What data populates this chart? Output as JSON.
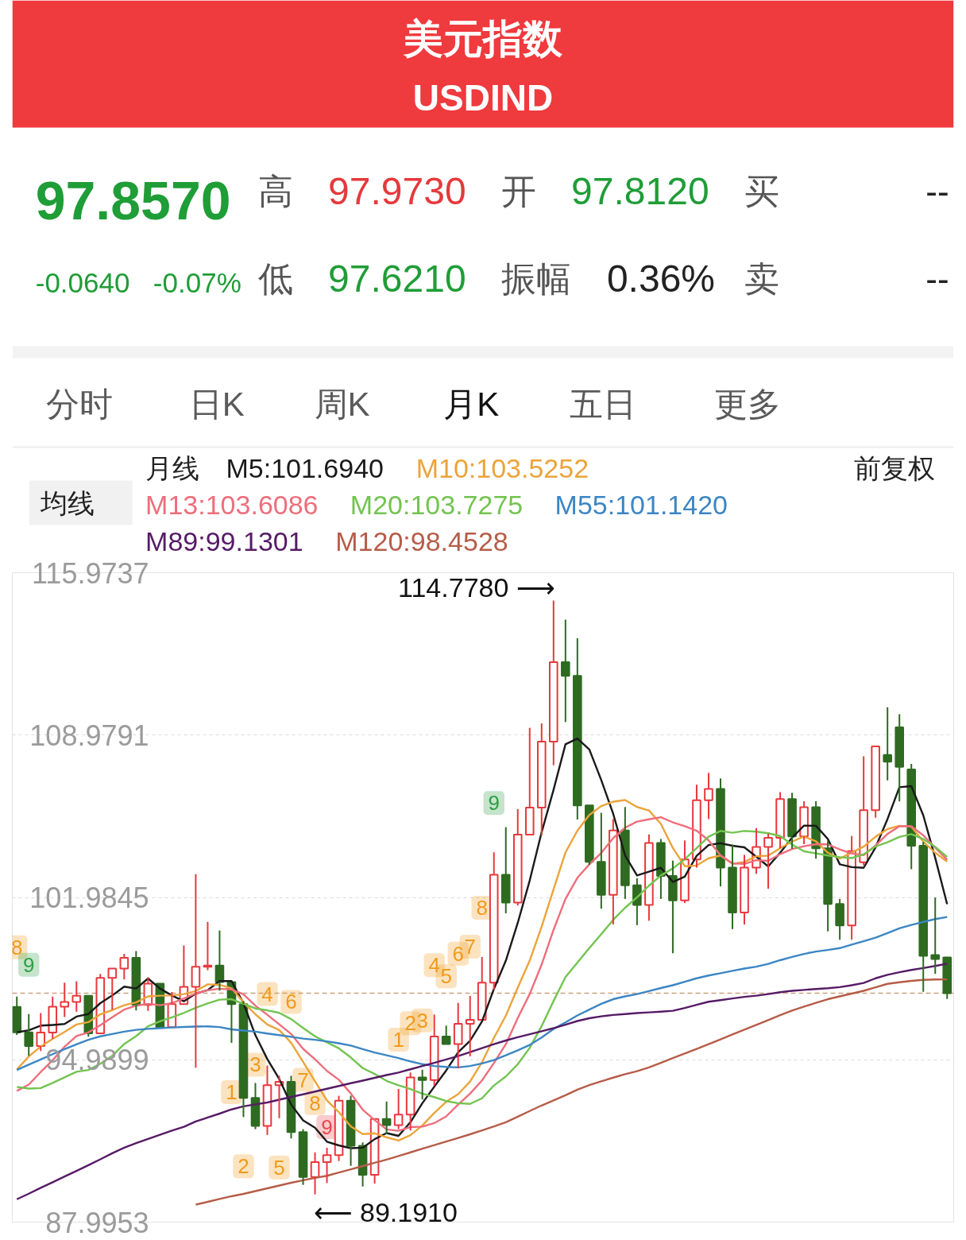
{
  "chart_data": {
    "type": "candlestick",
    "title": "美元指数",
    "subtitle": "USDIND",
    "annotations": [
      "97.8570",
      "高",
      "97.9730",
      "开",
      "97.8120",
      "买",
      "--",
      "-0.0640",
      "-0.07%",
      "低",
      "97.6210",
      "振幅",
      "0.36%",
      "卖",
      "--",
      "分时",
      "日K",
      "周K",
      "月K",
      "五日",
      "更多",
      "均线",
      "前复权",
      "114.7780 ⟶",
      "⟵ 89.1910",
      "8",
      "9",
      "1",
      "2",
      "3",
      "4",
      "5",
      "6",
      "7",
      "8",
      "9",
      "1",
      "2",
      "3",
      "4",
      "5",
      "6",
      "7",
      "8",
      "9"
    ],
    "categories": [
      null,
      null,
      null,
      null,
      null,
      null,
      null,
      null,
      null,
      null,
      null,
      null,
      null,
      null,
      null,
      null,
      null,
      null,
      null,
      null,
      null,
      null,
      null,
      null,
      null,
      null,
      null,
      null,
      null,
      null,
      null,
      null,
      null,
      null,
      null,
      null,
      null,
      null,
      null,
      null,
      null,
      null,
      null,
      null,
      null,
      null,
      null,
      null,
      null,
      null,
      null,
      null,
      null,
      null,
      null,
      null,
      null,
      null,
      null,
      null,
      null,
      null,
      null,
      null,
      null,
      null,
      null,
      null,
      null,
      null,
      null,
      null,
      null,
      null,
      null,
      null,
      null,
      null,
      null
    ],
    "ohlc": [
      [
        97.27,
        97.71,
        96.06,
        96.17
      ],
      [
        96.17,
        96.96,
        95.16,
        95.58
      ],
      [
        95.58,
        97.0,
        95.37,
        96.16
      ],
      [
        96.16,
        97.71,
        95.9,
        97.28
      ],
      [
        97.28,
        98.31,
        96.83,
        97.48
      ],
      [
        97.48,
        98.37,
        97.06,
        97.75
      ],
      [
        97.75,
        97.8,
        95.98,
        96.13
      ],
      [
        96.13,
        98.69,
        96.07,
        98.52
      ],
      [
        98.52,
        99.0,
        97.15,
        98.92
      ],
      [
        98.92,
        99.55,
        98.45,
        99.38
      ],
      [
        99.38,
        99.67,
        97.11,
        97.35
      ],
      [
        97.35,
        98.54,
        97.1,
        98.27
      ],
      [
        98.27,
        98.37,
        96.36,
        96.39
      ],
      [
        96.39,
        97.91,
        96.36,
        97.39
      ],
      [
        97.39,
        99.91,
        97.34,
        98.13
      ],
      [
        98.13,
        102.99,
        94.65,
        99.0
      ],
      [
        99.0,
        100.93,
        98.85,
        99.05
      ],
      [
        99.05,
        100.56,
        97.97,
        98.34
      ],
      [
        98.34,
        98.36,
        95.72,
        97.39
      ],
      [
        97.39,
        97.52,
        92.52,
        93.35
      ],
      [
        93.35,
        93.99,
        92.0,
        92.14
      ],
      [
        92.14,
        94.74,
        91.75,
        93.89
      ],
      [
        93.89,
        94.3,
        92.47,
        94.04
      ],
      [
        94.04,
        94.3,
        91.6,
        91.87
      ],
      [
        91.87,
        92.0,
        89.6,
        89.94
      ],
      [
        89.94,
        91.0,
        89.191,
        90.58
      ],
      [
        90.58,
        91.2,
        89.68,
        90.88
      ],
      [
        90.88,
        93.44,
        90.63,
        93.23
      ],
      [
        93.23,
        93.44,
        90.42,
        91.28
      ],
      [
        91.28,
        91.43,
        89.53,
        90.03
      ],
      [
        90.03,
        92.46,
        89.66,
        92.44
      ],
      [
        92.44,
        93.19,
        91.78,
        92.17
      ],
      [
        92.17,
        93.73,
        92.0,
        92.63
      ],
      [
        92.63,
        94.44,
        91.94,
        94.23
      ],
      [
        94.23,
        94.56,
        93.28,
        94.12
      ],
      [
        94.12,
        96.94,
        93.87,
        95.99
      ],
      [
        95.99,
        96.46,
        95.57,
        95.67
      ],
      [
        95.67,
        97.44,
        94.63,
        96.54
      ],
      [
        96.54,
        97.74,
        95.14,
        96.71
      ],
      [
        96.71,
        99.42,
        96.7,
        98.31
      ],
      [
        98.31,
        103.93,
        98.0,
        102.96
      ],
      [
        102.96,
        105.01,
        101.3,
        101.76
      ],
      [
        101.76,
        105.79,
        101.64,
        104.69
      ],
      [
        104.69,
        109.29,
        104.62,
        105.85
      ],
      [
        105.85,
        109.48,
        104.64,
        108.7
      ],
      [
        108.7,
        114.778,
        107.68,
        112.12
      ],
      [
        112.12,
        113.95,
        109.54,
        111.53
      ],
      [
        111.53,
        113.15,
        105.34,
        105.95
      ],
      [
        105.95,
        106.02,
        103.39,
        103.52
      ],
      [
        103.52,
        105.63,
        101.5,
        102.1
      ],
      [
        102.1,
        105.36,
        100.82,
        104.87
      ],
      [
        104.87,
        105.88,
        101.92,
        102.51
      ],
      [
        102.51,
        102.81,
        100.79,
        101.66
      ],
      [
        101.66,
        104.7,
        100.98,
        104.33
      ],
      [
        104.33,
        104.5,
        101.92,
        102.91
      ],
      [
        102.91,
        103.57,
        99.58,
        101.86
      ],
      [
        101.86,
        104.44,
        101.74,
        103.62
      ],
      [
        103.62,
        106.84,
        103.27,
        106.17
      ],
      [
        106.17,
        107.35,
        105.36,
        106.66
      ],
      [
        106.66,
        107.11,
        102.46,
        103.27
      ],
      [
        103.27,
        104.26,
        100.62,
        101.33
      ],
      [
        101.33,
        103.82,
        100.82,
        103.27
      ],
      [
        103.27,
        104.97,
        103.0,
        104.16
      ],
      [
        104.16,
        104.73,
        102.36,
        104.55
      ],
      [
        104.55,
        106.52,
        104.1,
        106.22
      ],
      [
        106.22,
        106.49,
        104.08,
        104.61
      ],
      [
        104.61,
        106.13,
        104.28,
        105.87
      ],
      [
        105.87,
        106.13,
        103.65,
        104.1
      ],
      [
        104.1,
        104.44,
        100.52,
        101.7
      ],
      [
        101.7,
        101.92,
        100.16,
        100.78
      ],
      [
        100.78,
        104.63,
        100.16,
        103.98
      ],
      [
        103.5,
        108.06,
        103.37,
        105.74
      ],
      [
        105.74,
        108.54,
        105.42,
        108.49
      ],
      [
        108.12,
        110.18,
        107.03,
        107.83
      ],
      [
        109.31,
        109.88,
        106.12,
        107.61
      ],
      [
        107.5,
        107.74,
        103.2,
        104.21
      ],
      [
        104.21,
        104.37,
        97.92,
        99.47
      ],
      [
        99.5,
        101.98,
        98.69,
        99.33
      ],
      [
        99.4,
        99.42,
        97.61,
        97.857
      ]
    ],
    "colors": [
      "#2e6b21",
      "#2e6b21",
      "#e8383d",
      "#e8383d",
      "#e8383d",
      "#e8383d",
      "#2e6b21",
      "#e8383d",
      "#e8383d",
      "#e8383d",
      "#2e6b21",
      "#e8383d",
      "#2e6b21",
      "#e8383d",
      "#e8383d",
      "#e8383d",
      "#e8383d",
      "#2e6b21",
      "#2e6b21",
      "#2e6b21",
      "#2e6b21",
      "#e8383d",
      "#e8383d",
      "#2e6b21",
      "#2e6b21",
      "#e8383d",
      "#e8383d",
      "#e8383d",
      "#2e6b21",
      "#2e6b21",
      "#e8383d",
      "#2e6b21",
      "#e8383d",
      "#e8383d",
      "#2e6b21",
      "#e8383d",
      "#2e6b21",
      "#e8383d",
      "#e8383d",
      "#e8383d",
      "#e8383d",
      "#2e6b21",
      "#e8383d",
      "#e8383d",
      "#e8383d",
      "#e8383d",
      "#2e6b21",
      "#2e6b21",
      "#2e6b21",
      "#2e6b21",
      "#e8383d",
      "#2e6b21",
      "#2e6b21",
      "#e8383d",
      "#2e6b21",
      "#2e6b21",
      "#e8383d",
      "#e8383d",
      "#e8383d",
      "#2e6b21",
      "#2e6b21",
      "#e8383d",
      "#e8383d",
      "#e8383d",
      "#e8383d",
      "#2e6b21",
      "#e8383d",
      "#2e6b21",
      "#2e6b21",
      "#2e6b21",
      "#e8383d",
      "#e8383d",
      "#e8383d",
      "#2e6b21",
      "#2e6b21",
      "#2e6b21",
      "#2e6b21",
      "#2e6b21",
      "#2e6b21"
    ],
    "series": [
      {
        "name": "M5:101.6940",
        "type": "line",
        "color": "#1a1a1a",
        "values": [
          96.17,
          96.26,
          96.46,
          96.49,
          96.53,
          96.85,
          96.96,
          97.43,
          97.76,
          98.14,
          98.06,
          98.49,
          98.06,
          97.76,
          97.51,
          97.84,
          97.99,
          98.38,
          98.38,
          97.43,
          96.05,
          95.02,
          94.16,
          93.06,
          92.38,
          92.06,
          91.46,
          91.3,
          91.18,
          91.2,
          91.57,
          91.83,
          91.71,
          92.3,
          93.12,
          93.83,
          94.53,
          95.31,
          95.81,
          96.64,
          98.04,
          99.26,
          100.89,
          102.71,
          104.79,
          106.62,
          108.58,
          108.83,
          108.36,
          107.04,
          105.59,
          103.79,
          102.93,
          103.09,
          103.26,
          102.65,
          102.88,
          103.78,
          104.24,
          104.32,
          104.21,
          104.14,
          103.74,
          103.32,
          103.91,
          104.56,
          105.08,
          105.07,
          104.5,
          103.41,
          103.29,
          103.26,
          104.14,
          105.36,
          106.73,
          106.78,
          105.52,
          103.69,
          101.694
        ]
      },
      {
        "name": "M10:103.5252",
        "type": "line",
        "color": "#eba43a",
        "values": [
          94.57,
          95.13,
          95.56,
          95.89,
          96.19,
          96.51,
          96.61,
          96.95,
          97.13,
          97.34,
          97.46,
          97.72,
          97.75,
          97.76,
          97.82,
          97.95,
          98.24,
          98.22,
          98.07,
          97.47,
          96.95,
          96.51,
          96.27,
          95.72,
          94.9,
          94.06,
          93.24,
          92.73,
          92.12,
          91.79,
          91.82,
          91.65,
          91.51,
          91.74,
          92.16,
          92.7,
          93.18,
          93.51,
          94.05,
          94.88,
          95.93,
          96.89,
          98.1,
          99.26,
          100.72,
          102.33,
          103.92,
          104.86,
          105.54,
          105.92,
          106.11,
          106.18,
          105.88,
          105.73,
          105.15,
          104.12,
          103.33,
          103.36,
          103.67,
          103.79,
          103.43,
          103.51,
          103.76,
          103.78,
          104.11,
          104.39,
          104.61,
          104.4,
          103.91,
          103.66,
          103.92,
          104.17,
          104.6,
          104.93,
          105.07,
          105.03,
          104.39,
          103.91,
          103.5252
        ]
      },
      {
        "name": "M13:103.6086",
        "type": "line",
        "color": "#ee6e7c",
        "values": [
          93.65,
          93.92,
          94.46,
          94.97,
          95.55,
          96.01,
          96.17,
          96.48,
          96.82,
          97.15,
          97.32,
          97.4,
          97.34,
          97.43,
          97.63,
          97.85,
          97.98,
          98.05,
          98.02,
          97.81,
          97.32,
          96.93,
          96.52,
          96.1,
          95.46,
          95.01,
          94.51,
          94.13,
          93.54,
          92.84,
          92.39,
          91.99,
          91.93,
          92.09,
          92.11,
          92.26,
          92.55,
          93.06,
          93.53,
          94.1,
          94.85,
          95.66,
          96.79,
          97.82,
          99.09,
          100.59,
          101.92,
          102.83,
          103.41,
          103.9,
          104.54,
          104.99,
          105.25,
          105.35,
          105.44,
          105.22,
          105.05,
          104.86,
          104.44,
          103.8,
          103.45,
          103.43,
          103.59,
          103.56,
          103.85,
          104.07,
          104.19,
          104.28,
          104.27,
          104.05,
          103.88,
          103.81,
          104.22,
          104.72,
          105.05,
          105.05,
          104.66,
          104.13,
          103.6086
        ]
      },
      {
        "name": "M20:103.7275",
        "type": "line",
        "color": "#73c451",
        "values": [
          93.82,
          93.75,
          93.77,
          93.99,
          94.23,
          94.47,
          94.55,
          94.82,
          95.16,
          95.67,
          96.01,
          96.43,
          96.65,
          96.82,
          97.01,
          97.23,
          97.42,
          97.58,
          97.6,
          97.4,
          97.2,
          97.12,
          97.01,
          96.74,
          96.36,
          96.0,
          95.74,
          95.48,
          95.09,
          94.63,
          94.38,
          94.08,
          93.89,
          93.73,
          93.53,
          93.38,
          93.21,
          93.12,
          93.09,
          93.33,
          93.88,
          94.27,
          94.8,
          95.5,
          96.44,
          97.52,
          98.55,
          99.18,
          99.8,
          100.4,
          101.02,
          101.54,
          101.99,
          102.49,
          102.93,
          103.23,
          103.63,
          104.11,
          104.6,
          104.85,
          104.77,
          104.85,
          104.82,
          104.75,
          104.63,
          104.26,
          103.97,
          103.88,
          103.79,
          103.72,
          103.68,
          103.84,
          104.18,
          104.36,
          104.59,
          104.71,
          104.5,
          104.16,
          103.7275
        ]
      },
      {
        "name": "M55:101.1420",
        "type": "line",
        "color": "#3c86c4",
        "values": [
          94.55,
          94.78,
          95.0,
          95.23,
          95.45,
          95.65,
          95.85,
          96.0,
          96.1,
          96.2,
          96.28,
          96.32,
          96.35,
          96.38,
          96.4,
          96.42,
          96.43,
          96.4,
          96.3,
          96.25,
          96.2,
          96.12,
          96.05,
          95.98,
          95.9,
          95.85,
          95.78,
          95.7,
          95.6,
          95.45,
          95.3,
          95.18,
          95.06,
          94.92,
          94.8,
          94.72,
          94.68,
          94.66,
          94.72,
          94.83,
          94.98,
          95.18,
          95.4,
          95.63,
          95.95,
          96.32,
          96.6,
          96.9,
          97.15,
          97.4,
          97.6,
          97.72,
          97.82,
          97.95,
          98.08,
          98.2,
          98.35,
          98.5,
          98.62,
          98.72,
          98.82,
          98.92,
          99.0,
          99.12,
          99.28,
          99.42,
          99.55,
          99.65,
          99.72,
          99.8,
          99.95,
          100.1,
          100.25,
          100.45,
          100.65,
          100.8,
          100.93,
          101.05,
          101.142
        ]
      },
      {
        "name": "M89:99.1301",
        "type": "line",
        "color": "#561b66",
        "values": [
          88.98,
          89.22,
          89.47,
          89.71,
          89.96,
          90.2,
          90.45,
          90.7,
          90.96,
          91.2,
          91.4,
          91.58,
          91.76,
          91.94,
          92.1,
          92.33,
          92.5,
          92.67,
          92.85,
          92.98,
          93.07,
          93.15,
          93.27,
          93.39,
          93.5,
          93.62,
          93.74,
          93.86,
          93.98,
          94.09,
          94.21,
          94.33,
          94.44,
          94.58,
          94.72,
          94.86,
          95.0,
          95.15,
          95.32,
          95.49,
          95.66,
          95.82,
          95.96,
          96.09,
          96.22,
          96.35,
          96.5,
          96.66,
          96.78,
          96.86,
          96.92,
          96.96,
          97.0,
          97.03,
          97.06,
          97.1,
          97.22,
          97.36,
          97.49,
          97.56,
          97.63,
          97.7,
          97.75,
          97.82,
          97.9,
          97.96,
          98.0,
          98.04,
          98.07,
          98.12,
          98.2,
          98.3,
          98.5,
          98.65,
          98.76,
          98.86,
          98.94,
          99.03,
          99.1301
        ]
      },
      {
        "name": "M120:98.4528",
        "type": "line",
        "color": "#b65c48",
        "values": [
          null,
          null,
          null,
          null,
          null,
          null,
          null,
          null,
          null,
          null,
          null,
          null,
          null,
          null,
          null,
          88.75,
          88.87,
          88.99,
          89.11,
          89.21,
          89.33,
          89.45,
          89.57,
          89.69,
          89.8,
          89.9,
          89.99,
          90.13,
          90.27,
          90.41,
          90.55,
          90.69,
          90.84,
          91.0,
          91.16,
          91.31,
          91.47,
          91.62,
          91.78,
          91.95,
          92.12,
          92.3,
          92.54,
          92.78,
          93.02,
          93.24,
          93.46,
          93.7,
          93.9,
          94.06,
          94.22,
          94.37,
          94.5,
          94.66,
          94.86,
          95.06,
          95.26,
          95.46,
          95.66,
          95.87,
          96.08,
          96.29,
          96.49,
          96.7,
          96.91,
          97.11,
          97.28,
          97.44,
          97.6,
          97.72,
          97.84,
          97.96,
          98.11,
          98.26,
          98.33,
          98.39,
          98.43,
          98.45,
          98.4528
        ]
      }
    ],
    "ylim": [
      87.9953,
      115.9737
    ],
    "yticks": [
      115.9737,
      108.9791,
      101.9845,
      94.9899,
      87.9953
    ],
    "grid": "y",
    "legend": "top",
    "legend_title": "月线",
    "tick_labels": "y",
    "ref_lines": [
      {
        "axis": "y",
        "value": 97.857,
        "color": "#c9a27e",
        "line_style": "dashed"
      }
    ]
  }
}
